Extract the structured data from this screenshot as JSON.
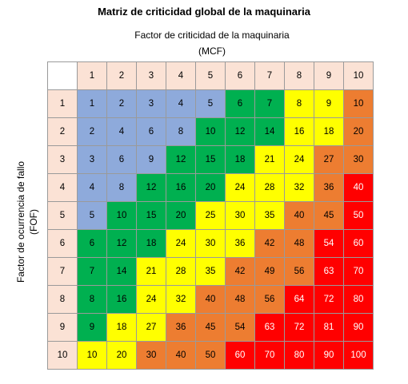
{
  "chart_data": {
    "type": "heatmap",
    "title": "Matriz de criticidad global de la maquinaria",
    "xlabel": "Factor de criticidad de la maquinaria",
    "xlabel_abbr": "(MCF)",
    "ylabel": "Factor de ocurrencia de fallo",
    "ylabel_abbr": "(FOF)",
    "x": [
      1,
      2,
      3,
      4,
      5,
      6,
      7,
      8,
      9,
      10
    ],
    "y": [
      1,
      2,
      3,
      4,
      5,
      6,
      7,
      8,
      9,
      10
    ],
    "values": [
      [
        1,
        2,
        3,
        4,
        5,
        6,
        7,
        8,
        9,
        10
      ],
      [
        2,
        4,
        6,
        8,
        10,
        12,
        14,
        16,
        18,
        20
      ],
      [
        3,
        6,
        9,
        12,
        15,
        18,
        21,
        24,
        27,
        30
      ],
      [
        4,
        8,
        12,
        16,
        20,
        24,
        28,
        32,
        36,
        40
      ],
      [
        5,
        10,
        15,
        20,
        25,
        30,
        35,
        40,
        45,
        50
      ],
      [
        6,
        12,
        18,
        24,
        30,
        36,
        42,
        48,
        54,
        60
      ],
      [
        7,
        14,
        21,
        28,
        35,
        42,
        49,
        56,
        63,
        70
      ],
      [
        8,
        16,
        24,
        32,
        40,
        48,
        56,
        64,
        72,
        80
      ],
      [
        9,
        18,
        27,
        36,
        45,
        54,
        63,
        72,
        81,
        90
      ],
      [
        10,
        20,
        30,
        40,
        50,
        60,
        70,
        80,
        90,
        100
      ]
    ],
    "colors": [
      [
        "blue",
        "blue",
        "blue",
        "blue",
        "blue",
        "green",
        "green",
        "yellow",
        "yellow",
        "orange"
      ],
      [
        "blue",
        "blue",
        "blue",
        "blue",
        "green",
        "green",
        "green",
        "yellow",
        "yellow",
        "orange"
      ],
      [
        "blue",
        "blue",
        "blue",
        "green",
        "green",
        "green",
        "yellow",
        "yellow",
        "orange",
        "orange"
      ],
      [
        "blue",
        "blue",
        "green",
        "green",
        "green",
        "yellow",
        "yellow",
        "yellow",
        "orange",
        "red"
      ],
      [
        "blue",
        "green",
        "green",
        "green",
        "yellow",
        "yellow",
        "yellow",
        "orange",
        "orange",
        "red"
      ],
      [
        "green",
        "green",
        "green",
        "yellow",
        "yellow",
        "yellow",
        "orange",
        "orange",
        "red",
        "red"
      ],
      [
        "green",
        "green",
        "yellow",
        "yellow",
        "yellow",
        "orange",
        "orange",
        "orange",
        "red",
        "red"
      ],
      [
        "green",
        "green",
        "yellow",
        "yellow",
        "orange",
        "orange",
        "orange",
        "red",
        "red",
        "red"
      ],
      [
        "green",
        "yellow",
        "yellow",
        "orange",
        "orange",
        "orange",
        "red",
        "red",
        "red",
        "red"
      ],
      [
        "yellow",
        "yellow",
        "orange",
        "orange",
        "orange",
        "red",
        "red",
        "red",
        "red",
        "red"
      ]
    ],
    "palette": {
      "blue": "#8eaadb",
      "green": "#00b050",
      "yellow": "#ffff00",
      "orange": "#ed7d31",
      "red": "#ff0000",
      "header": "#fbe2d5"
    },
    "grid": true
  }
}
